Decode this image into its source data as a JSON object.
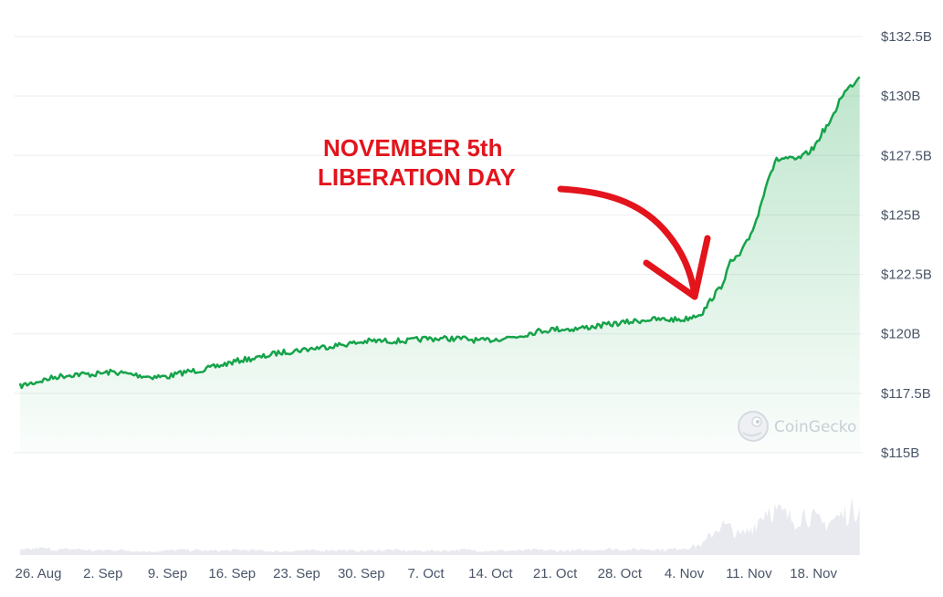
{
  "chart_data": {
    "type": "area",
    "y_unit": "USD",
    "ylim": [
      115,
      132.5
    ],
    "y_ticks": [
      {
        "value": 132.5,
        "label": "$132.5B"
      },
      {
        "value": 130,
        "label": "$130B"
      },
      {
        "value": 127.5,
        "label": "$127.5B"
      },
      {
        "value": 125,
        "label": "$125B"
      },
      {
        "value": 122.5,
        "label": "$122.5B"
      },
      {
        "value": 120,
        "label": "$120B"
      },
      {
        "value": 117.5,
        "label": "$117.5B"
      },
      {
        "value": 115,
        "label": "$115B"
      }
    ],
    "x_ticks": [
      "26. Aug",
      "2. Sep",
      "9. Sep",
      "16. Sep",
      "23. Sep",
      "30. Sep",
      "7. Oct",
      "14. Oct",
      "21. Oct",
      "28. Oct",
      "4. Nov",
      "11. Nov",
      "18. Nov"
    ],
    "grid": true,
    "line_color": "#16a34a",
    "area_color": "#16a34a",
    "volume_color": "#e8eaef",
    "series": [
      {
        "x": [
          "2024-08-24",
          "2024-08-26",
          "2024-08-28",
          "2024-08-30",
          "2024-09-01",
          "2024-09-03",
          "2024-09-05",
          "2024-09-07",
          "2024-09-09",
          "2024-09-11",
          "2024-09-13",
          "2024-09-15",
          "2024-09-17",
          "2024-09-19",
          "2024-09-21",
          "2024-09-23",
          "2024-09-25",
          "2024-09-27",
          "2024-09-29",
          "2024-10-01",
          "2024-10-03",
          "2024-10-05",
          "2024-10-07",
          "2024-10-09",
          "2024-10-11",
          "2024-10-13",
          "2024-10-15",
          "2024-10-17",
          "2024-10-19",
          "2024-10-21",
          "2024-10-23",
          "2024-10-25",
          "2024-10-27",
          "2024-10-29",
          "2024-10-31",
          "2024-11-02",
          "2024-11-04",
          "2024-11-06",
          "2024-11-07",
          "2024-11-08",
          "2024-11-09",
          "2024-11-10",
          "2024-11-11",
          "2024-11-12",
          "2024-11-13",
          "2024-11-14",
          "2024-11-15",
          "2024-11-16",
          "2024-11-17",
          "2024-11-18",
          "2024-11-19",
          "2024-11-20",
          "2024-11-21",
          "2024-11-22",
          "2024-11-23"
        ],
        "y": [
          117.8,
          118.0,
          118.2,
          118.3,
          118.3,
          118.4,
          118.3,
          118.2,
          118.2,
          118.4,
          118.5,
          118.7,
          118.9,
          119.0,
          119.2,
          119.3,
          119.4,
          119.5,
          119.6,
          119.7,
          119.7,
          119.7,
          119.8,
          119.8,
          119.8,
          119.7,
          119.8,
          119.9,
          120.1,
          120.2,
          120.2,
          120.3,
          120.4,
          120.5,
          120.6,
          120.6,
          120.6,
          120.9,
          121.5,
          122.0,
          123.0,
          123.3,
          124.0,
          125.0,
          126.5,
          127.3,
          127.4,
          127.3,
          127.5,
          127.8,
          128.5,
          129.0,
          130.0,
          130.4,
          130.8
        ]
      }
    ],
    "volume": [
      0.05,
      0.08,
      0.06,
      0.07,
      0.05,
      0.06,
      0.05,
      0.04,
      0.05,
      0.06,
      0.05,
      0.05,
      0.06,
      0.05,
      0.04,
      0.05,
      0.05,
      0.06,
      0.05,
      0.05,
      0.06,
      0.05,
      0.05,
      0.05,
      0.06,
      0.05,
      0.05,
      0.05,
      0.06,
      0.05,
      0.05,
      0.06,
      0.07,
      0.06,
      0.07,
      0.06,
      0.08,
      0.12,
      0.25,
      0.35,
      0.3,
      0.22,
      0.28,
      0.4,
      0.55,
      0.5,
      0.45,
      0.4,
      0.48,
      0.42,
      0.35,
      0.4,
      0.45,
      0.5,
      0.55
    ]
  },
  "annotation": {
    "line1": "NOVEMBER 5th",
    "line2": "LIBERATION DAY",
    "color": "#e3141c"
  },
  "watermark": {
    "text": "CoinGecko",
    "icon": "gecko-logo-icon"
  }
}
